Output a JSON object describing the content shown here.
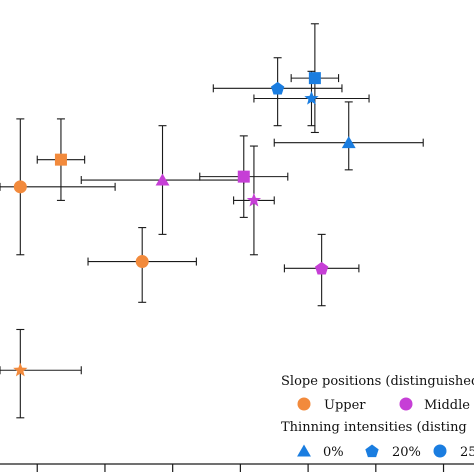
{
  "chart_data": {
    "type": "scatter",
    "xlim": [
      -0.3,
      6.7
    ],
    "ylim": [
      -0.78,
      6.05
    ],
    "x_ticks": [
      0.25,
      1.25,
      2.25,
      3.25,
      4.25,
      5.25,
      6.25
    ],
    "legend": {
      "position": "bottom-right",
      "slope_title": "Slope positions (distinguished",
      "slope_items": [
        {
          "label": "Upper",
          "color": "#f28a3c"
        },
        {
          "label": "Middle",
          "color": "#c63fd6"
        }
      ],
      "thinning_title": "Thinning intensities (disting",
      "thinning_items": [
        {
          "label": "0%",
          "marker": "triangle"
        },
        {
          "label": "20%",
          "marker": "pentagon"
        },
        {
          "label": "25",
          "marker": "circle"
        }
      ],
      "marker_color": "#1a7de0"
    },
    "points": [
      {
        "x": 0.0,
        "y": 3.3,
        "xerr": [
          0.3,
          1.4
        ],
        "yerr": [
          1.0,
          1.0
        ],
        "marker": "circle",
        "color": "#f28a3c"
      },
      {
        "x": 0.6,
        "y": 3.7,
        "xerr": [
          0.35,
          0.35
        ],
        "yerr": [
          0.6,
          0.6
        ],
        "marker": "square",
        "color": "#f28a3c"
      },
      {
        "x": 1.8,
        "y": 2.2,
        "xerr": [
          0.8,
          0.8
        ],
        "yerr": [
          0.6,
          0.5
        ],
        "marker": "circle",
        "color": "#f28a3c"
      },
      {
        "x": 0.0,
        "y": 0.6,
        "xerr": [
          0.3,
          0.9
        ],
        "yerr": [
          0.7,
          0.6
        ],
        "marker": "star",
        "color": "#f28a3c"
      },
      {
        "x": 2.1,
        "y": 3.4,
        "xerr": [
          1.2,
          1.2
        ],
        "yerr": [
          0.8,
          0.8
        ],
        "marker": "triangle",
        "color": "#c63fd6"
      },
      {
        "x": 3.3,
        "y": 3.45,
        "xerr": [
          0.65,
          0.65
        ],
        "yerr": [
          0.6,
          0.6
        ],
        "marker": "square",
        "color": "#c63fd6"
      },
      {
        "x": 3.45,
        "y": 3.1,
        "xerr": [
          0.3,
          0.3
        ],
        "yerr": [
          0.8,
          0.8
        ],
        "marker": "star",
        "color": "#c63fd6"
      },
      {
        "x": 4.45,
        "y": 2.1,
        "xerr": [
          0.55,
          0.55
        ],
        "yerr": [
          0.55,
          0.5
        ],
        "marker": "pentagon",
        "color": "#c63fd6"
      },
      {
        "x": 3.8,
        "y": 4.75,
        "xerr": [
          0.95,
          0.95
        ],
        "yerr": [
          0.55,
          0.45
        ],
        "marker": "pentagon",
        "color": "#1a7de0"
      },
      {
        "x": 4.35,
        "y": 4.9,
        "xerr": [
          0.35,
          0.35
        ],
        "yerr": [
          0.8,
          0.8
        ],
        "marker": "square",
        "color": "#1a7de0"
      },
      {
        "x": 4.3,
        "y": 4.6,
        "xerr": [
          0.85,
          0.85
        ],
        "yerr": [
          0.4,
          0.4
        ],
        "marker": "star",
        "color": "#1a7de0"
      },
      {
        "x": 4.85,
        "y": 3.95,
        "xerr": [
          1.1,
          1.1
        ],
        "yerr": [
          0.4,
          0.6
        ],
        "marker": "triangle",
        "color": "#1a7de0"
      }
    ]
  }
}
